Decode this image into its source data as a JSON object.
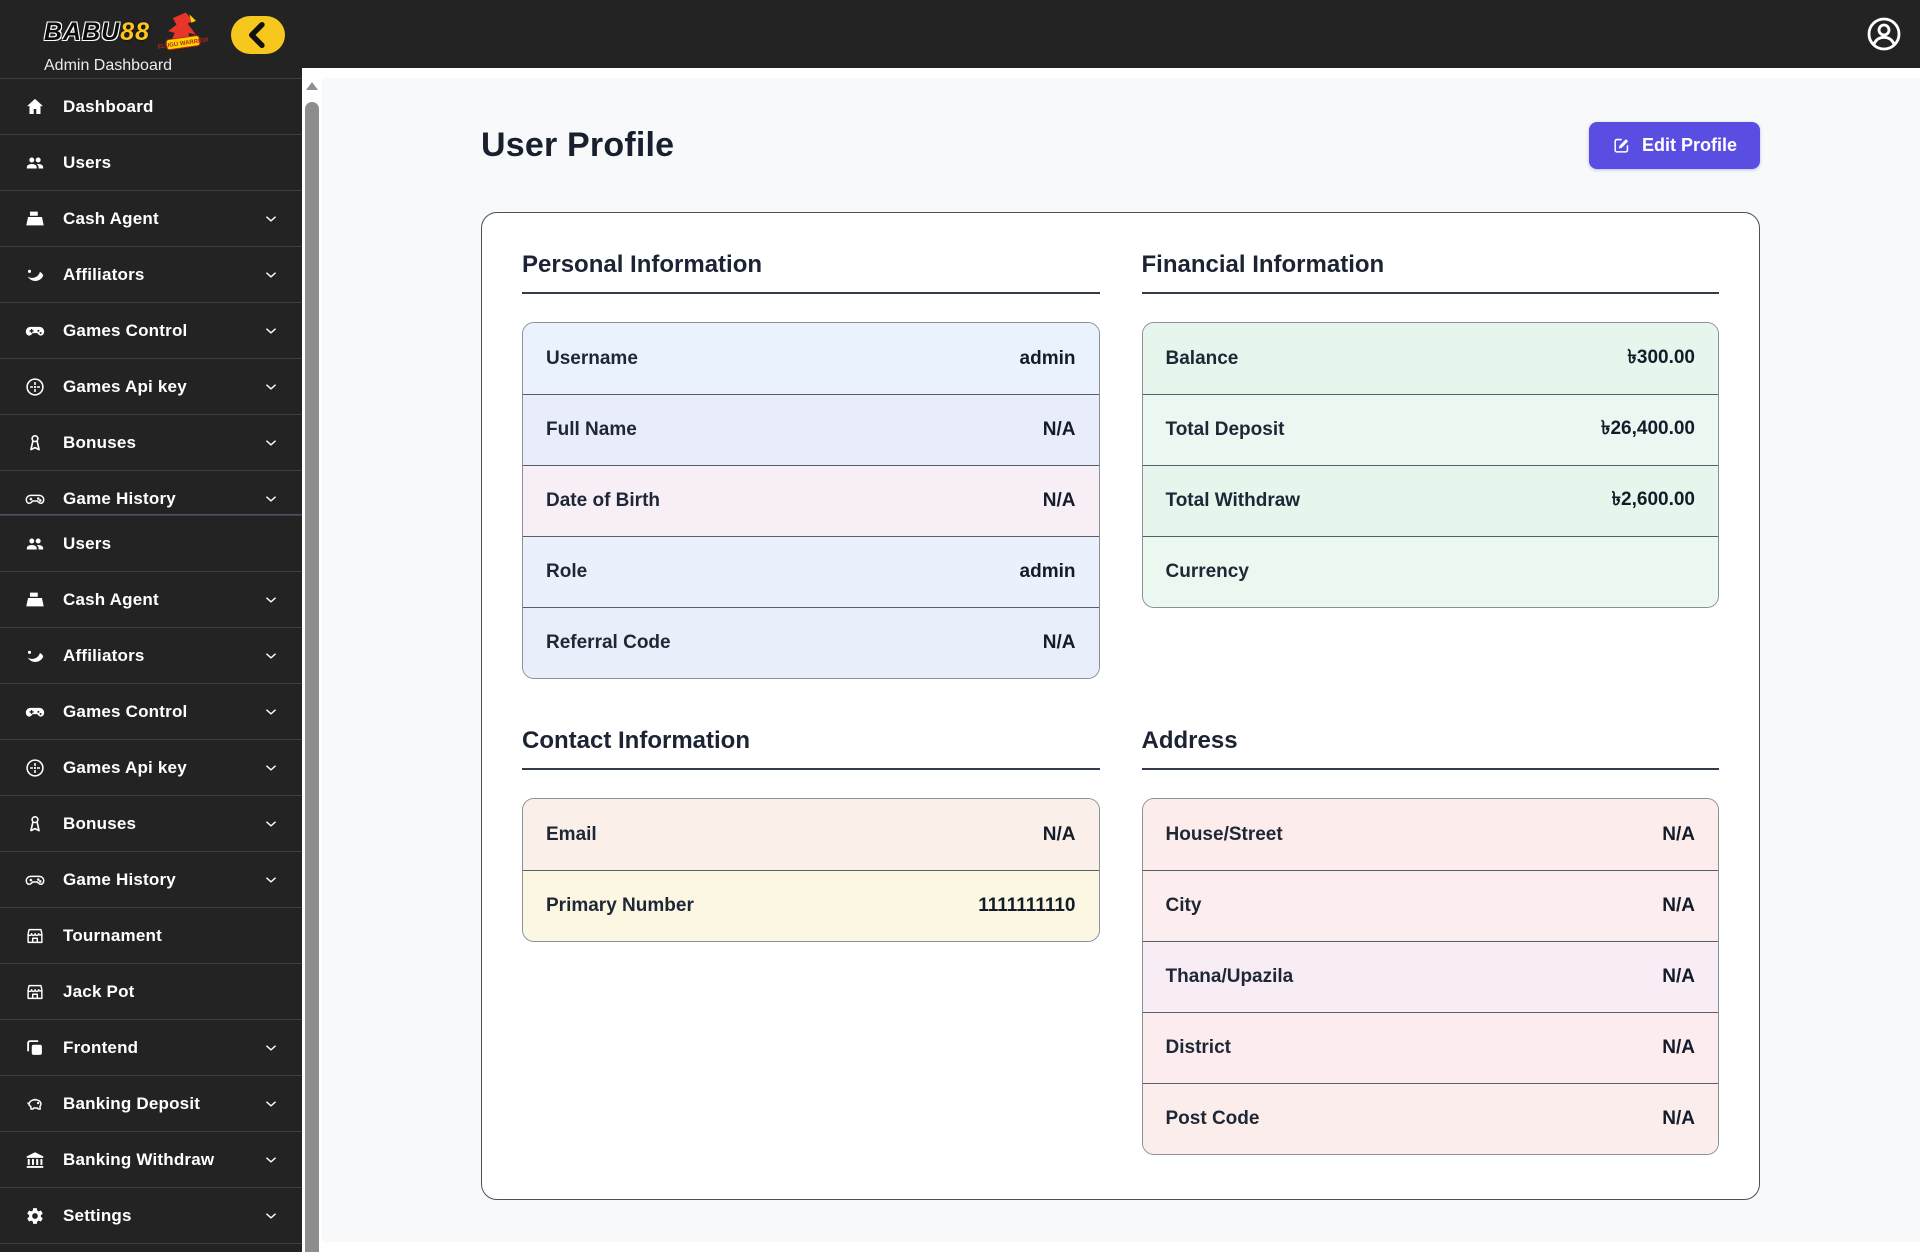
{
  "brand": {
    "name_left": "BABU",
    "name_right": "88",
    "subtitle": "Admin Dashboard",
    "mascot_text": "TELUGU WARRIORS",
    "accent_yellow": "#f6c71d"
  },
  "page": {
    "title": "User Profile",
    "edit_button_label": "Edit Profile",
    "accent": "#5a4ee2",
    "content_bg": "#f8f9fb"
  },
  "sidebar": {
    "bg": "#232323",
    "sections": [
      {
        "items": [
          {
            "label": "Dashboard",
            "icon": "home",
            "chevron": false
          },
          {
            "label": "Users",
            "icon": "users",
            "chevron": false
          },
          {
            "label": "Cash Agent",
            "icon": "cash-register",
            "chevron": true
          },
          {
            "label": "Affiliators",
            "icon": "affiliate",
            "chevron": true
          },
          {
            "label": "Games Control",
            "icon": "gamepad",
            "chevron": true
          },
          {
            "label": "Games Api key",
            "icon": "api-circle",
            "chevron": true
          },
          {
            "label": "Bonuses",
            "icon": "award",
            "chevron": true
          },
          {
            "label": "Game History",
            "icon": "gamepad-outline",
            "chevron": true,
            "clipped": true
          }
        ]
      },
      {
        "items": [
          {
            "label": "Users",
            "icon": "users",
            "chevron": false
          },
          {
            "label": "Cash Agent",
            "icon": "cash-register",
            "chevron": true
          },
          {
            "label": "Affiliators",
            "icon": "affiliate",
            "chevron": true
          },
          {
            "label": "Games Control",
            "icon": "gamepad",
            "chevron": true
          },
          {
            "label": "Games Api key",
            "icon": "api-circle",
            "chevron": true
          },
          {
            "label": "Bonuses",
            "icon": "award",
            "chevron": true
          },
          {
            "label": "Game History",
            "icon": "gamepad-outline",
            "chevron": true
          },
          {
            "label": "Tournament",
            "icon": "storefront",
            "chevron": false
          },
          {
            "label": "Jack Pot",
            "icon": "storefront",
            "chevron": false
          },
          {
            "label": "Frontend",
            "icon": "pages",
            "chevron": true
          },
          {
            "label": "Banking Deposit",
            "icon": "piggy-bank",
            "chevron": true
          },
          {
            "label": "Banking Withdraw",
            "icon": "bank",
            "chevron": true
          },
          {
            "label": "Settings",
            "icon": "gear",
            "chevron": true
          }
        ]
      }
    ]
  },
  "profile": {
    "sections": {
      "personal": {
        "title": "Personal Information",
        "tints": [
          "#eaf2fd",
          "#e9edfb",
          "#f8eef6",
          "#eaf1fc",
          "#e9eefb"
        ],
        "rows": [
          {
            "label": "Username",
            "value": "admin"
          },
          {
            "label": "Full Name",
            "value": "N/A"
          },
          {
            "label": "Date of Birth",
            "value": "N/A"
          },
          {
            "label": "Role",
            "value": "admin"
          },
          {
            "label": "Referral Code",
            "value": "N/A"
          }
        ]
      },
      "financial": {
        "title": "Financial Information",
        "tints": [
          "#e7f6ec",
          "#eaf8f1",
          "#e7f6ec",
          "#eaf8f0"
        ],
        "rows": [
          {
            "label": "Balance",
            "value": "৳300.00"
          },
          {
            "label": "Total Deposit",
            "value": "৳26,400.00"
          },
          {
            "label": "Total Withdraw",
            "value": "৳2,600.00"
          },
          {
            "label": "Currency",
            "value": ""
          }
        ]
      },
      "contact": {
        "title": "Contact Information",
        "tints": [
          "#faf0e9",
          "#fbf7e2"
        ],
        "rows": [
          {
            "label": "Email",
            "value": "N/A"
          },
          {
            "label": "Primary Number",
            "value": "1111111110"
          }
        ]
      },
      "address": {
        "title": "Address",
        "tints": [
          "#fcecec",
          "#fceeee",
          "#f9edf5",
          "#fcecee",
          "#fceded"
        ],
        "rows": [
          {
            "label": "House/Street",
            "value": "N/A"
          },
          {
            "label": "City",
            "value": "N/A"
          },
          {
            "label": "Thana/Upazila",
            "value": "N/A"
          },
          {
            "label": "District",
            "value": "N/A"
          },
          {
            "label": "Post Code",
            "value": "N/A"
          }
        ]
      }
    }
  }
}
